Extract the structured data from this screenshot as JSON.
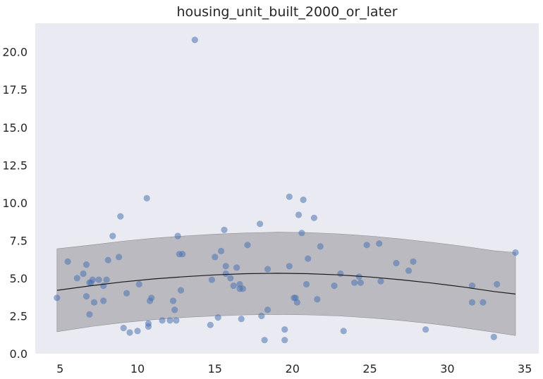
{
  "chart_data": {
    "type": "scatter",
    "title": "housing_unit_built_2000_or_later",
    "xlabel": "",
    "ylabel": "",
    "xlim": [
      3.4,
      35.9
    ],
    "ylim": [
      0,
      21.9
    ],
    "xticks": [
      5,
      10,
      15,
      20,
      25,
      30,
      35
    ],
    "yticks": [
      0.0,
      2.5,
      5.0,
      7.5,
      10.0,
      12.5,
      15.0,
      17.5,
      20.0
    ],
    "ytick_labels": [
      "0.0",
      "2.5",
      "5.0",
      "7.5",
      "10.0",
      "12.5",
      "15.0",
      "17.5",
      "20.0"
    ],
    "grid": false,
    "background": "#eaeaf2",
    "point_color": "#4c72b0",
    "fit_line_color": "#1a1a1a",
    "band_color": "#a9a7ad",
    "points": [
      [
        4.8,
        3.7
      ],
      [
        5.5,
        6.1
      ],
      [
        6.1,
        5.0
      ],
      [
        6.5,
        5.3
      ],
      [
        6.7,
        5.9
      ],
      [
        6.7,
        3.8
      ],
      [
        6.9,
        4.7
      ],
      [
        6.9,
        2.6
      ],
      [
        7.0,
        4.7
      ],
      [
        7.1,
        4.9
      ],
      [
        7.2,
        3.4
      ],
      [
        7.5,
        4.9
      ],
      [
        7.8,
        4.5
      ],
      [
        7.8,
        3.5
      ],
      [
        8.0,
        4.9
      ],
      [
        8.1,
        6.2
      ],
      [
        8.4,
        7.8
      ],
      [
        8.8,
        6.4
      ],
      [
        8.9,
        9.1
      ],
      [
        9.1,
        1.7
      ],
      [
        9.3,
        4.0
      ],
      [
        9.5,
        1.4
      ],
      [
        10.0,
        1.5
      ],
      [
        10.1,
        4.6
      ],
      [
        10.6,
        10.3
      ],
      [
        10.7,
        1.8
      ],
      [
        10.7,
        2.0
      ],
      [
        10.8,
        3.5
      ],
      [
        10.9,
        3.7
      ],
      [
        11.6,
        2.2
      ],
      [
        12.1,
        2.2
      ],
      [
        12.3,
        3.5
      ],
      [
        12.4,
        2.9
      ],
      [
        12.5,
        2.2
      ],
      [
        12.6,
        7.8
      ],
      [
        12.7,
        6.6
      ],
      [
        12.8,
        4.2
      ],
      [
        12.9,
        6.6
      ],
      [
        13.7,
        20.8
      ],
      [
        14.7,
        1.9
      ],
      [
        14.8,
        4.9
      ],
      [
        15.0,
        6.4
      ],
      [
        15.2,
        2.4
      ],
      [
        15.4,
        6.8
      ],
      [
        15.6,
        8.2
      ],
      [
        15.7,
        5.8
      ],
      [
        15.7,
        5.3
      ],
      [
        16.0,
        5.0
      ],
      [
        16.2,
        4.5
      ],
      [
        16.4,
        5.7
      ],
      [
        16.6,
        4.3
      ],
      [
        16.6,
        4.6
      ],
      [
        16.7,
        2.3
      ],
      [
        16.8,
        4.3
      ],
      [
        17.1,
        7.2
      ],
      [
        17.9,
        8.6
      ],
      [
        18.0,
        2.5
      ],
      [
        18.2,
        0.9
      ],
      [
        18.4,
        5.6
      ],
      [
        18.4,
        2.9
      ],
      [
        19.5,
        1.6
      ],
      [
        19.5,
        0.9
      ],
      [
        19.8,
        5.8
      ],
      [
        19.8,
        10.4
      ],
      [
        20.1,
        3.7
      ],
      [
        20.2,
        3.7
      ],
      [
        20.3,
        3.4
      ],
      [
        20.4,
        9.2
      ],
      [
        20.6,
        8.0
      ],
      [
        20.7,
        10.2
      ],
      [
        20.9,
        4.6
      ],
      [
        21.0,
        6.3
      ],
      [
        21.4,
        9.0
      ],
      [
        21.6,
        3.6
      ],
      [
        21.8,
        7.1
      ],
      [
        22.7,
        4.5
      ],
      [
        23.1,
        5.3
      ],
      [
        23.3,
        1.5
      ],
      [
        24.0,
        4.7
      ],
      [
        24.3,
        5.1
      ],
      [
        24.4,
        4.7
      ],
      [
        24.8,
        7.2
      ],
      [
        25.6,
        7.3
      ],
      [
        25.7,
        4.8
      ],
      [
        26.7,
        6.0
      ],
      [
        27.5,
        5.5
      ],
      [
        27.8,
        6.1
      ],
      [
        28.6,
        1.6
      ],
      [
        31.6,
        3.4
      ],
      [
        31.6,
        4.5
      ],
      [
        32.3,
        3.4
      ],
      [
        33.0,
        1.1
      ],
      [
        33.2,
        4.6
      ],
      [
        34.4,
        6.7
      ]
    ],
    "fit_line": {
      "x": [
        4.8,
        7,
        9,
        11,
        13,
        15,
        17,
        19,
        21,
        23,
        25,
        27,
        29,
        31,
        33,
        34.4
      ],
      "y": [
        4.2,
        4.5,
        4.75,
        4.95,
        5.1,
        5.22,
        5.3,
        5.33,
        5.3,
        5.22,
        5.08,
        4.9,
        4.68,
        4.42,
        4.12,
        3.95
      ]
    },
    "band": {
      "x": [
        4.8,
        7,
        9,
        11,
        13,
        15,
        17,
        19,
        21,
        23,
        25,
        27,
        29,
        31,
        33,
        34.4
      ],
      "lower": [
        1.45,
        1.8,
        2.05,
        2.25,
        2.4,
        2.5,
        2.57,
        2.6,
        2.57,
        2.5,
        2.37,
        2.2,
        1.98,
        1.72,
        1.42,
        1.2
      ],
      "upper": [
        6.95,
        7.2,
        7.45,
        7.65,
        7.8,
        7.92,
        8.0,
        8.05,
        8.02,
        7.94,
        7.8,
        7.6,
        7.38,
        7.12,
        6.82,
        6.7
      ]
    }
  }
}
